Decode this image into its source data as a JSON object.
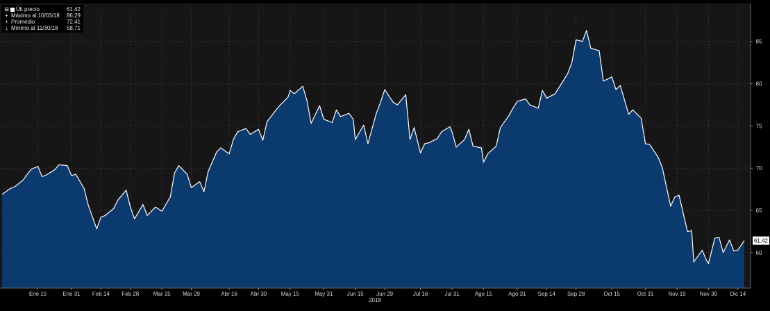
{
  "legend": [
    {
      "marker": "square",
      "label": "Últ precio",
      "value": "61,42"
    },
    {
      "marker": "plus",
      "label": "Máximo al 10/03/18",
      "value": "86,29"
    },
    {
      "marker": "plus",
      "label": "Promedio",
      "value": "72,41"
    },
    {
      "marker": "plus",
      "label": "Mínimo al 11/30/18",
      "value": "58,71"
    }
  ],
  "colors": {
    "background": "#000000",
    "plot_background": "#161616",
    "area_fill": "#0b3a6e",
    "line": "#ffffff",
    "grid": "#3c3c3c"
  },
  "chart_data": {
    "type": "area",
    "title": "",
    "xlabel": "2018",
    "ylabel": "",
    "ylim": [
      55.8,
      89.5
    ],
    "y_ticks": [
      60,
      65,
      70,
      75,
      80,
      85
    ],
    "grid": true,
    "legend_position": "top-left",
    "x_ticks": [
      {
        "label": "Ene 15",
        "date": "2018-01-15"
      },
      {
        "label": "Ene 31",
        "date": "2018-01-31"
      },
      {
        "label": "Feb 14",
        "date": "2018-02-14"
      },
      {
        "label": "Feb 28",
        "date": "2018-02-28"
      },
      {
        "label": "Mar 15",
        "date": "2018-03-15"
      },
      {
        "label": "Mar 29",
        "date": "2018-03-29"
      },
      {
        "label": "Abr 16",
        "date": "2018-04-16"
      },
      {
        "label": "Abr 30",
        "date": "2018-04-30"
      },
      {
        "label": "May 15",
        "date": "2018-05-15"
      },
      {
        "label": "May 31",
        "date": "2018-05-31"
      },
      {
        "label": "Jun 15",
        "date": "2018-06-15"
      },
      {
        "label": "Jun 29",
        "date": "2018-06-29"
      },
      {
        "label": "Jul 16",
        "date": "2018-07-16"
      },
      {
        "label": "Jul 31",
        "date": "2018-07-31"
      },
      {
        "label": "Ago 15",
        "date": "2018-08-15"
      },
      {
        "label": "Ago 31",
        "date": "2018-08-31"
      },
      {
        "label": "Sep 14",
        "date": "2018-09-14"
      },
      {
        "label": "Sep 28",
        "date": "2018-09-28"
      },
      {
        "label": "Oct 15",
        "date": "2018-10-15"
      },
      {
        "label": "Oct 31",
        "date": "2018-10-31"
      },
      {
        "label": "Nov 15",
        "date": "2018-11-15"
      },
      {
        "label": "Nov 30",
        "date": "2018-11-30"
      },
      {
        "label": "Dic 14",
        "date": "2018-12-14"
      }
    ],
    "last_value_label": "61,42",
    "series": [
      {
        "values": [
          [
            "2017-12-29",
            66.9
          ],
          [
            "2018-01-02",
            67.6
          ],
          [
            "2018-01-04",
            67.8
          ],
          [
            "2018-01-08",
            68.6
          ],
          [
            "2018-01-10",
            69.3
          ],
          [
            "2018-01-12",
            69.9
          ],
          [
            "2018-01-15",
            70.2
          ],
          [
            "2018-01-17",
            69.0
          ],
          [
            "2018-01-19",
            69.2
          ],
          [
            "2018-01-23",
            69.8
          ],
          [
            "2018-01-25",
            70.4
          ],
          [
            "2018-01-29",
            70.3
          ],
          [
            "2018-01-31",
            69.1
          ],
          [
            "2018-02-02",
            69.3
          ],
          [
            "2018-02-06",
            67.6
          ],
          [
            "2018-02-08",
            65.6
          ],
          [
            "2018-02-12",
            62.8
          ],
          [
            "2018-02-14",
            64.2
          ],
          [
            "2018-02-16",
            64.4
          ],
          [
            "2018-02-20",
            65.2
          ],
          [
            "2018-02-22",
            66.2
          ],
          [
            "2018-02-26",
            67.4
          ],
          [
            "2018-02-28",
            65.4
          ],
          [
            "2018-03-02",
            64.0
          ],
          [
            "2018-03-06",
            65.7
          ],
          [
            "2018-03-08",
            64.4
          ],
          [
            "2018-03-12",
            65.4
          ],
          [
            "2018-03-15",
            64.9
          ],
          [
            "2018-03-19",
            66.6
          ],
          [
            "2018-03-21",
            69.4
          ],
          [
            "2018-03-23",
            70.3
          ],
          [
            "2018-03-27",
            69.3
          ],
          [
            "2018-03-29",
            67.7
          ],
          [
            "2018-04-02",
            68.4
          ],
          [
            "2018-04-04",
            67.2
          ],
          [
            "2018-04-06",
            69.6
          ],
          [
            "2018-04-10",
            71.9
          ],
          [
            "2018-04-12",
            72.4
          ],
          [
            "2018-04-16",
            71.7
          ],
          [
            "2018-04-18",
            73.4
          ],
          [
            "2018-04-20",
            74.3
          ],
          [
            "2018-04-24",
            74.7
          ],
          [
            "2018-04-26",
            74.0
          ],
          [
            "2018-04-30",
            74.6
          ],
          [
            "2018-05-02",
            73.3
          ],
          [
            "2018-05-04",
            75.5
          ],
          [
            "2018-05-08",
            76.8
          ],
          [
            "2018-05-10",
            77.4
          ],
          [
            "2018-05-14",
            78.4
          ],
          [
            "2018-05-15",
            79.2
          ],
          [
            "2018-05-17",
            78.8
          ],
          [
            "2018-05-21",
            79.7
          ],
          [
            "2018-05-23",
            78.0
          ],
          [
            "2018-05-25",
            75.3
          ],
          [
            "2018-05-29",
            77.4
          ],
          [
            "2018-05-31",
            75.8
          ],
          [
            "2018-06-04",
            75.4
          ],
          [
            "2018-06-06",
            76.9
          ],
          [
            "2018-06-08",
            76.1
          ],
          [
            "2018-06-12",
            76.5
          ],
          [
            "2018-06-14",
            75.8
          ],
          [
            "2018-06-15",
            73.4
          ],
          [
            "2018-06-19",
            75.1
          ],
          [
            "2018-06-21",
            72.9
          ],
          [
            "2018-06-25",
            76.5
          ],
          [
            "2018-06-27",
            77.8
          ],
          [
            "2018-06-29",
            79.3
          ],
          [
            "2018-07-03",
            77.8
          ],
          [
            "2018-07-05",
            77.5
          ],
          [
            "2018-07-09",
            78.7
          ],
          [
            "2018-07-11",
            73.4
          ],
          [
            "2018-07-13",
            74.8
          ],
          [
            "2018-07-16",
            71.8
          ],
          [
            "2018-07-18",
            72.9
          ],
          [
            "2018-07-20",
            73.0
          ],
          [
            "2018-07-24",
            73.5
          ],
          [
            "2018-07-26",
            74.3
          ],
          [
            "2018-07-30",
            74.9
          ],
          [
            "2018-07-31",
            74.3
          ],
          [
            "2018-08-02",
            72.5
          ],
          [
            "2018-08-06",
            73.4
          ],
          [
            "2018-08-08",
            74.6
          ],
          [
            "2018-08-10",
            72.6
          ],
          [
            "2018-08-14",
            72.4
          ],
          [
            "2018-08-15",
            70.7
          ],
          [
            "2018-08-17",
            71.7
          ],
          [
            "2018-08-21",
            72.6
          ],
          [
            "2018-08-23",
            74.8
          ],
          [
            "2018-08-27",
            76.2
          ],
          [
            "2018-08-29",
            77.1
          ],
          [
            "2018-08-31",
            77.9
          ],
          [
            "2018-09-04",
            78.2
          ],
          [
            "2018-09-06",
            77.5
          ],
          [
            "2018-09-10",
            77.1
          ],
          [
            "2018-09-12",
            79.2
          ],
          [
            "2018-09-14",
            78.3
          ],
          [
            "2018-09-18",
            78.8
          ],
          [
            "2018-09-20",
            79.6
          ],
          [
            "2018-09-24",
            81.2
          ],
          [
            "2018-09-26",
            82.5
          ],
          [
            "2018-09-28",
            85.2
          ],
          [
            "2018-10-01",
            85.0
          ],
          [
            "2018-10-03",
            86.3
          ],
          [
            "2018-10-05",
            84.2
          ],
          [
            "2018-10-09",
            83.9
          ],
          [
            "2018-10-11",
            80.3
          ],
          [
            "2018-10-15",
            80.8
          ],
          [
            "2018-10-17",
            79.3
          ],
          [
            "2018-10-19",
            79.8
          ],
          [
            "2018-10-23",
            76.4
          ],
          [
            "2018-10-25",
            76.9
          ],
          [
            "2018-10-29",
            75.9
          ],
          [
            "2018-10-31",
            72.9
          ],
          [
            "2018-11-02",
            72.8
          ],
          [
            "2018-11-06",
            71.3
          ],
          [
            "2018-11-08",
            70.1
          ],
          [
            "2018-11-12",
            65.5
          ],
          [
            "2018-11-14",
            66.6
          ],
          [
            "2018-11-16",
            66.8
          ],
          [
            "2018-11-20",
            62.5
          ],
          [
            "2018-11-22",
            62.6
          ],
          [
            "2018-11-23",
            58.9
          ],
          [
            "2018-11-27",
            60.3
          ],
          [
            "2018-11-29",
            59.1
          ],
          [
            "2018-11-30",
            58.7
          ],
          [
            "2018-12-03",
            61.7
          ],
          [
            "2018-12-05",
            61.8
          ],
          [
            "2018-12-07",
            60.0
          ],
          [
            "2018-12-10",
            61.5
          ],
          [
            "2018-12-12",
            60.2
          ],
          [
            "2018-12-14",
            60.3
          ],
          [
            "2018-12-17",
            61.42
          ]
        ]
      }
    ]
  }
}
